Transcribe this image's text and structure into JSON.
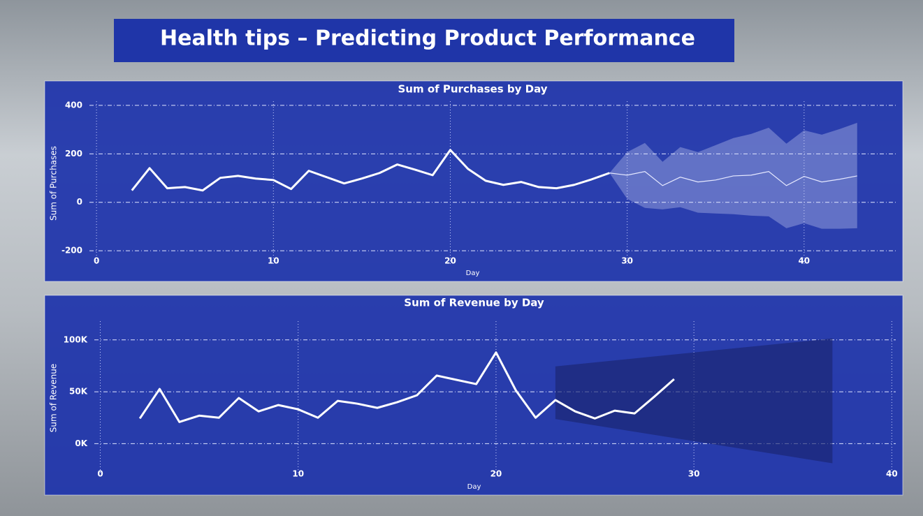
{
  "title": "Health tips – Predicting Product Performance",
  "chart_data": [
    {
      "type": "line",
      "title": "Sum of Purchases by Day",
      "x_label": "Day",
      "y_label": "Sum of Purchases",
      "x": [
        2,
        3,
        4,
        5,
        6,
        7,
        8,
        9,
        10,
        11,
        12,
        13,
        14,
        15,
        16,
        17,
        18,
        19,
        20,
        21,
        22,
        23,
        24,
        25,
        26,
        27,
        28,
        29
      ],
      "values": [
        49,
        141,
        58,
        63,
        49,
        101,
        109,
        98,
        92,
        55,
        130,
        104,
        78,
        98,
        121,
        156,
        135,
        112,
        216,
        138,
        89,
        72,
        84,
        63,
        58,
        72,
        95,
        121
      ],
      "color": "#ffffff",
      "forecast": {
        "x": [
          29,
          30,
          31,
          32,
          33,
          34,
          35,
          36,
          37,
          38,
          39,
          40,
          41,
          42,
          43
        ],
        "values": [
          121,
          112,
          127,
          69,
          104,
          84,
          92,
          109,
          112,
          127,
          69,
          107,
          84,
          95,
          109
        ],
        "upper": [
          121,
          207,
          245,
          167,
          228,
          207,
          236,
          265,
          282,
          308,
          242,
          297,
          279,
          302,
          328
        ],
        "lower": [
          121,
          14,
          -23,
          -29,
          -20,
          -43,
          -46,
          -49,
          -55,
          -58,
          -107,
          -86,
          -109,
          -109,
          -107
        ],
        "color": "#e6e9ff"
      },
      "xlim": [
        -0.4,
        45.3
      ],
      "xticks": [
        0,
        10,
        20,
        30,
        40
      ],
      "ylim": [
        -260,
        417
      ],
      "yticks": [
        -200,
        0,
        200,
        400
      ],
      "grid": true
    },
    {
      "type": "line",
      "title": "Sum of Revenue by Day",
      "x_label": "Day",
      "y_label": "Sum of Revenue",
      "x": [
        2,
        3,
        4,
        5,
        6,
        7,
        8,
        9,
        10,
        11,
        12,
        13,
        14,
        15,
        16,
        17,
        18,
        19,
        20,
        21,
        22,
        23,
        24,
        25,
        26,
        27,
        28,
        29
      ],
      "values": [
        24300,
        52700,
        20900,
        27000,
        25000,
        44000,
        31100,
        37200,
        33100,
        25000,
        41200,
        38500,
        34500,
        39900,
        46600,
        65600,
        61500,
        57400,
        87900,
        51400,
        25000,
        42000,
        31100,
        24300,
        31800,
        29100,
        45300,
        62200
      ],
      "color": "#ffffff",
      "forecast": {
        "x": [
          23,
          37
        ],
        "upper": [
          74400,
          101400
        ],
        "lower": [
          23700,
          -18900
        ],
        "color": "#1a2570"
      },
      "xlim": [
        -0.3,
        40.2
      ],
      "xticks": [
        0,
        10,
        20,
        30,
        40
      ],
      "ylim": [
        -30000,
        118000
      ],
      "yticks": [
        {
          "value": 0,
          "label": "0K"
        },
        {
          "value": 50000,
          "label": "50K"
        },
        {
          "value": 100000,
          "label": "100K"
        }
      ],
      "grid": true
    }
  ]
}
